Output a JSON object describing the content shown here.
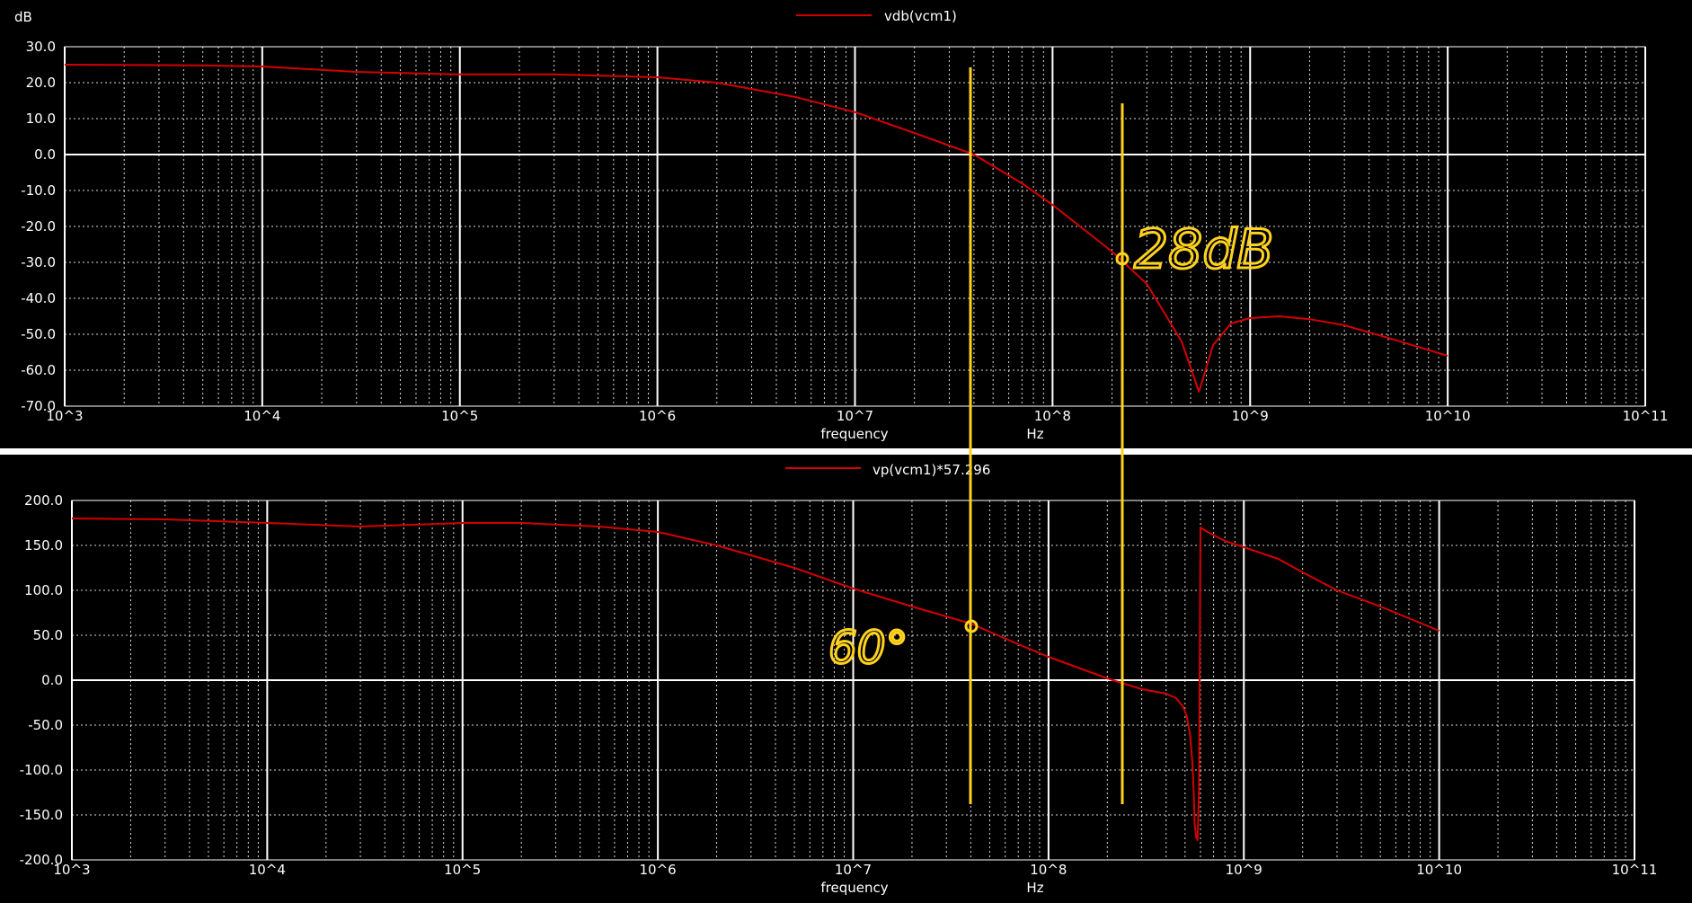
{
  "colors": {
    "background": "#000000",
    "grid": "#ffffff",
    "trace": "#d40000",
    "annotation": "#ffd21e"
  },
  "chart_data": [
    {
      "type": "line",
      "xscale": "log",
      "xlim": [
        1000,
        100000000000
      ],
      "ylim": [
        -70,
        30
      ],
      "yunit": "dB",
      "xlabel": "frequency",
      "xunit": "Hz",
      "legend": "vdb(vcm1)",
      "legend_position": "top-center",
      "xticks": [
        "10^3",
        "10^4",
        "10^5",
        "10^6",
        "10^7",
        "10^8",
        "10^9",
        "10^10",
        "10^11"
      ],
      "yticks": [
        "30.0",
        "20.0",
        "10.0",
        "0.0",
        "-10.0",
        "-20.0",
        "-30.0",
        "-40.0",
        "-50.0",
        "-60.0",
        "-70.0"
      ],
      "grid": true,
      "series": [
        {
          "name": "vdb(vcm1)",
          "x": [
            1000,
            5000,
            10000,
            30000,
            100000,
            300000,
            1000000,
            2000000,
            5000000,
            10000000,
            20000000,
            40000000,
            70000000,
            100000000,
            200000000,
            300000000,
            450000000,
            520000000,
            550000000,
            580000000,
            650000000,
            800000000,
            1000000000,
            1400000000,
            2000000000,
            3000000000,
            5000000000,
            10000000000
          ],
          "y": [
            25,
            24.8,
            24.5,
            23,
            22.3,
            22.3,
            21.5,
            20,
            16,
            11.8,
            6,
            0,
            -8,
            -14,
            -27,
            -36,
            -52,
            -62,
            -66,
            -62,
            -53,
            -47,
            -45.5,
            -45,
            -45.8,
            -47.5,
            -51,
            -56
          ]
        }
      ]
    },
    {
      "type": "line",
      "xscale": "log",
      "xlim": [
        1000,
        100000000000
      ],
      "ylim": [
        -200,
        200
      ],
      "xlabel": "frequency",
      "xunit": "Hz",
      "legend": "vp(vcm1)*57.296",
      "legend_position": "top-center",
      "xticks": [
        "10^3",
        "10^4",
        "10^5",
        "10^6",
        "10^7",
        "10^8",
        "10^9",
        "10^10",
        "10^11"
      ],
      "yticks": [
        "200.0",
        "150.0",
        "100.0",
        "50.0",
        "0.0",
        "-50.0",
        "-100.0",
        "-150.0",
        "-200.0"
      ],
      "grid": true,
      "series": [
        {
          "name": "vp(vcm1)*57.296",
          "x": [
            1000,
            3000,
            10000,
            30000,
            100000,
            200000,
            500000,
            1000000,
            2000000,
            5000000,
            10000000,
            20000000,
            40000000,
            70000000,
            100000000,
            200000000,
            300000000,
            400000000,
            450000000,
            490000000,
            510000000,
            530000000,
            545000000,
            555000000,
            560000000,
            570000000,
            580000000,
            590000000,
            600000000,
            650000000,
            800000000,
            1000000000,
            1500000000,
            2000000000,
            3000000000,
            5000000000,
            10000000000
          ],
          "y": [
            180,
            179,
            175,
            171,
            175,
            175,
            171,
            165,
            150,
            125,
            102,
            82,
            63,
            40,
            26,
            2,
            -10,
            -15,
            -20,
            -30,
            -40,
            -60,
            -90,
            -130,
            -160,
            -175,
            -178,
            -120,
            170,
            165,
            155,
            148,
            135,
            120,
            100,
            82,
            55
          ]
        }
      ]
    }
  ],
  "annotations": {
    "magnitude_note": "28dB",
    "phase_note": "60°",
    "cursor_frequencies_hz": [
      40000000,
      230000000
    ]
  }
}
